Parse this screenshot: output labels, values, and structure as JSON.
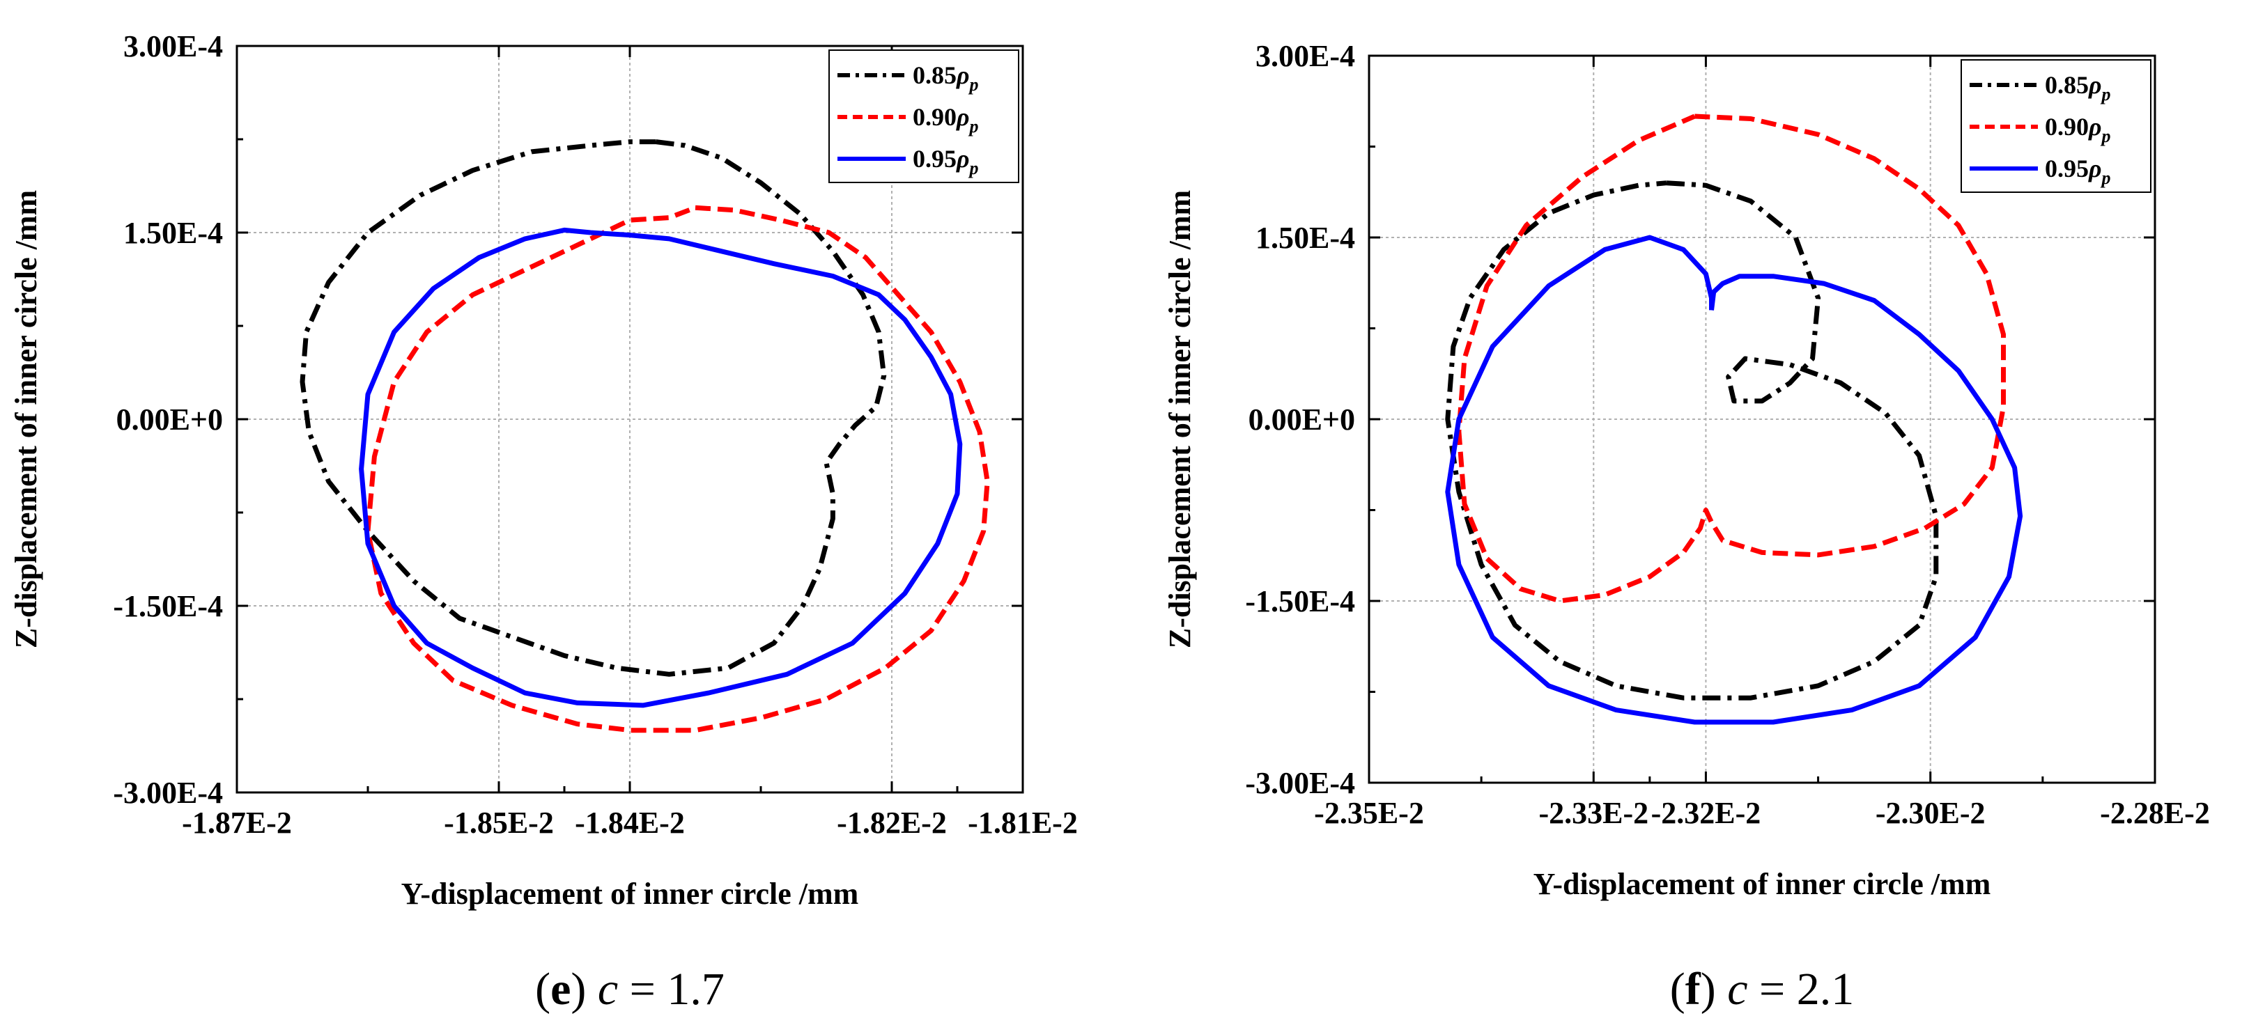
{
  "chart_data": [
    {
      "type": "line",
      "panel": "e",
      "caption": {
        "letter": "e",
        "param": "c",
        "equals": "= 1.7"
      },
      "xlabel": "Y-displacement of inner circle /mm",
      "ylabel": "Z-displacement of inner circle /mm",
      "xlim": [
        -0.0187,
        -0.0181
      ],
      "ylim": [
        -0.0003,
        0.0003
      ],
      "x_ticks": [
        -0.0187,
        -0.0185,
        -0.0184,
        -0.0182,
        -0.0181
      ],
      "x_tick_labels": [
        "-1.87E-2",
        "-1.85E-2",
        "-1.84E-2",
        "-1.82E-2",
        "-1.81E-2"
      ],
      "y_ticks": [
        -0.0003,
        -0.00015,
        0,
        0.00015,
        0.0003
      ],
      "y_tick_labels": [
        "-3.00E-4",
        "-1.50E-4",
        "0.00E+0",
        "1.50E-4",
        "3.00E-4"
      ],
      "grid": true,
      "legend": "top-right",
      "series": [
        {
          "name": "0.85",
          "color": "#000000",
          "style": "dashdot",
          "x": [
            -0.01838,
            -0.018358,
            -0.01833,
            -0.0183,
            -0.01827,
            -0.018245,
            -0.018222,
            -0.01821,
            -0.018206,
            -0.018212,
            -0.018228,
            -0.01824,
            -0.01825,
            -0.018245,
            -0.018245,
            -0.01825,
            -0.018255,
            -0.018268,
            -0.01829,
            -0.018325,
            -0.01837,
            -0.01841,
            -0.01845,
            -0.01849,
            -0.01853,
            -0.018565,
            -0.0186,
            -0.01863,
            -0.018645,
            -0.01865,
            -0.018647,
            -0.01863,
            -0.0186,
            -0.01856,
            -0.01852,
            -0.018475,
            -0.01843,
            -0.0184,
            -0.01838
          ],
          "y": [
            0.000223,
            0.00022,
            0.00021,
            0.00019,
            0.000165,
            0.000135,
            0.0001,
            7e-05,
            3.5e-05,
            1e-05,
            -5e-06,
            -2e-05,
            -3.5e-05,
            -6e-05,
            -8e-05,
            -0.0001,
            -0.00012,
            -0.00015,
            -0.00018,
            -0.0002,
            -0.000205,
            -0.0002,
            -0.00019,
            -0.000175,
            -0.00016,
            -0.00013,
            -9e-05,
            -5e-05,
            -1e-05,
            3e-05,
            7e-05,
            0.00011,
            0.00015,
            0.00018,
            0.0002,
            0.000215,
            0.00022,
            0.000223,
            0.000223
          ]
        },
        {
          "name": "0.90",
          "color": "#ff0000",
          "style": "dash",
          "x": [
            -0.01835,
            -0.01832,
            -0.018285,
            -0.018248,
            -0.01822,
            -0.018195,
            -0.01817,
            -0.018148,
            -0.018133,
            -0.018127,
            -0.01813,
            -0.018145,
            -0.01817,
            -0.018205,
            -0.01825,
            -0.0183,
            -0.01835,
            -0.0184,
            -0.01844,
            -0.01849,
            -0.018535,
            -0.018565,
            -0.01859,
            -0.0186,
            -0.018595,
            -0.01858,
            -0.018555,
            -0.01852,
            -0.01848,
            -0.01844,
            -0.0184,
            -0.01837,
            -0.01835
          ],
          "y": [
            0.00017,
            0.000168,
            0.00016,
            0.00015,
            0.00013,
            0.0001,
            7e-05,
            3e-05,
            -1e-05,
            -5e-05,
            -9e-05,
            -0.00013,
            -0.00017,
            -0.0002,
            -0.000225,
            -0.00024,
            -0.00025,
            -0.00025,
            -0.000245,
            -0.00023,
            -0.00021,
            -0.00018,
            -0.00014,
            -9e-05,
            -3e-05,
            3e-05,
            7e-05,
            0.0001,
            0.00012,
            0.00014,
            0.00016,
            0.000162,
            0.00017
          ]
        },
        {
          "name": "0.95",
          "color": "#0000ff",
          "style": "solid",
          "x": [
            -0.01843,
            -0.0184,
            -0.01837,
            -0.01833,
            -0.01829,
            -0.018245,
            -0.01821,
            -0.01819,
            -0.01817,
            -0.018155,
            -0.018148,
            -0.01815,
            -0.018165,
            -0.01819,
            -0.01823,
            -0.01828,
            -0.01834,
            -0.01839,
            -0.01844,
            -0.01848,
            -0.01852,
            -0.018555,
            -0.01858,
            -0.0186,
            -0.018605,
            -0.0186,
            -0.01858,
            -0.01855,
            -0.018515,
            -0.01848,
            -0.01845,
            -0.01843
          ],
          "y": [
            0.00015,
            0.000148,
            0.000145,
            0.000135,
            0.000125,
            0.000115,
            0.0001,
            8e-05,
            5e-05,
            2e-05,
            -2e-05,
            -6e-05,
            -0.0001,
            -0.00014,
            -0.00018,
            -0.000205,
            -0.00022,
            -0.00023,
            -0.000228,
            -0.00022,
            -0.0002,
            -0.00018,
            -0.00015,
            -0.0001,
            -4e-05,
            2e-05,
            7e-05,
            0.000105,
            0.00013,
            0.000145,
            0.000152,
            0.00015
          ]
        }
      ]
    },
    {
      "type": "line",
      "panel": "f",
      "caption": {
        "letter": "f",
        "param": "c",
        "equals": "= 2.1"
      },
      "xlabel": "Y-displacement of inner circle /mm",
      "ylabel": "Z-displacement of inner circle /mm",
      "xlim": [
        -0.0235,
        -0.0228
      ],
      "ylim": [
        -0.0003,
        0.0003
      ],
      "x_ticks": [
        -0.0235,
        -0.0233,
        -0.0232,
        -0.023,
        -0.0228
      ],
      "x_tick_labels": [
        "-2.35E-2",
        "-2.33E-2",
        "-2.32E-2",
        "-2.30E-2",
        "-2.28E-2"
      ],
      "y_ticks": [
        -0.0003,
        -0.00015,
        0,
        0.00015,
        0.0003
      ],
      "y_tick_labels": [
        "-3.00E-4",
        "-1.50E-4",
        "0.00E+0",
        "1.50E-4",
        "3.00E-4"
      ],
      "grid": true,
      "legend": "top-right",
      "series": [
        {
          "name": "0.85",
          "color": "#000000",
          "style": "dashdot",
          "x": [
            -0.023235,
            -0.0232,
            -0.02316,
            -0.02312,
            -0.0231,
            -0.023105,
            -0.023125,
            -0.02315,
            -0.023175,
            -0.02318,
            -0.023165,
            -0.023125,
            -0.02308,
            -0.02304,
            -0.02301,
            -0.022995,
            -0.022995,
            -0.02301,
            -0.02305,
            -0.0231,
            -0.02316,
            -0.02322,
            -0.02328,
            -0.02333,
            -0.02337,
            -0.0234,
            -0.02342,
            -0.02343,
            -0.023425,
            -0.02341,
            -0.02338,
            -0.02334,
            -0.0233,
            -0.02326,
            -0.023235
          ],
          "y": [
            0.000195,
            0.000193,
            0.00018,
            0.00015,
            0.0001,
            5e-05,
            3e-05,
            1.5e-05,
            1.5e-05,
            3.5e-05,
            5e-05,
            4.5e-05,
            3e-05,
            5e-06,
            -3e-05,
            -8e-05,
            -0.00013,
            -0.00017,
            -0.0002,
            -0.00022,
            -0.00023,
            -0.00023,
            -0.00022,
            -0.0002,
            -0.00017,
            -0.00012,
            -6e-05,
            0.0,
            6e-05,
            0.0001,
            0.00014,
            0.00017,
            0.000185,
            0.000193,
            0.000195
          ]
        },
        {
          "name": "0.90",
          "color": "#ff0000",
          "style": "dash",
          "x": [
            -0.02321,
            -0.02316,
            -0.0231,
            -0.02305,
            -0.02301,
            -0.022975,
            -0.02295,
            -0.022935,
            -0.022935,
            -0.022945,
            -0.02297,
            -0.023005,
            -0.02305,
            -0.0231,
            -0.02315,
            -0.023185,
            -0.023195,
            -0.0232,
            -0.023205,
            -0.02322,
            -0.02325,
            -0.02329,
            -0.02333,
            -0.023365,
            -0.023395,
            -0.023415,
            -0.02342,
            -0.023415,
            -0.023395,
            -0.02336,
            -0.02331,
            -0.02326,
            -0.02321
          ],
          "y": [
            0.00025,
            0.000248,
            0.000235,
            0.000215,
            0.00019,
            0.00016,
            0.00012,
            7e-05,
            1e-05,
            -4e-05,
            -7e-05,
            -9e-05,
            -0.000105,
            -0.000112,
            -0.00011,
            -0.0001,
            -8.5e-05,
            -7.5e-05,
            -9e-05,
            -0.00011,
            -0.00013,
            -0.000145,
            -0.00015,
            -0.00014,
            -0.000115,
            -7e-05,
            -1e-05,
            5e-05,
            0.00011,
            0.00016,
            0.0002,
            0.00023,
            0.00025
          ]
        },
        {
          "name": "0.95",
          "color": "#0000ff",
          "style": "solid",
          "x": [
            -0.023195,
            -0.023193,
            -0.023185,
            -0.02317,
            -0.02314,
            -0.023095,
            -0.02305,
            -0.02301,
            -0.022975,
            -0.022945,
            -0.022925,
            -0.02292,
            -0.02293,
            -0.02296,
            -0.02301,
            -0.02307,
            -0.02314,
            -0.02321,
            -0.02328,
            -0.02334,
            -0.02339,
            -0.02342,
            -0.02343,
            -0.02342,
            -0.02339,
            -0.02334,
            -0.02329,
            -0.02325,
            -0.02322,
            -0.0232,
            -0.023195,
            -0.023195
          ],
          "y": [
            9e-05,
            0.000105,
            0.000112,
            0.000118,
            0.000118,
            0.000112,
            9.8e-05,
            7e-05,
            4e-05,
            0.0,
            -4e-05,
            -8e-05,
            -0.00013,
            -0.00018,
            -0.00022,
            -0.00024,
            -0.00025,
            -0.00025,
            -0.00024,
            -0.00022,
            -0.00018,
            -0.00012,
            -6e-05,
            0.0,
            6e-05,
            0.00011,
            0.00014,
            0.00015,
            0.00014,
            0.00012,
            0.0001,
            9e-05
          ]
        }
      ]
    }
  ]
}
